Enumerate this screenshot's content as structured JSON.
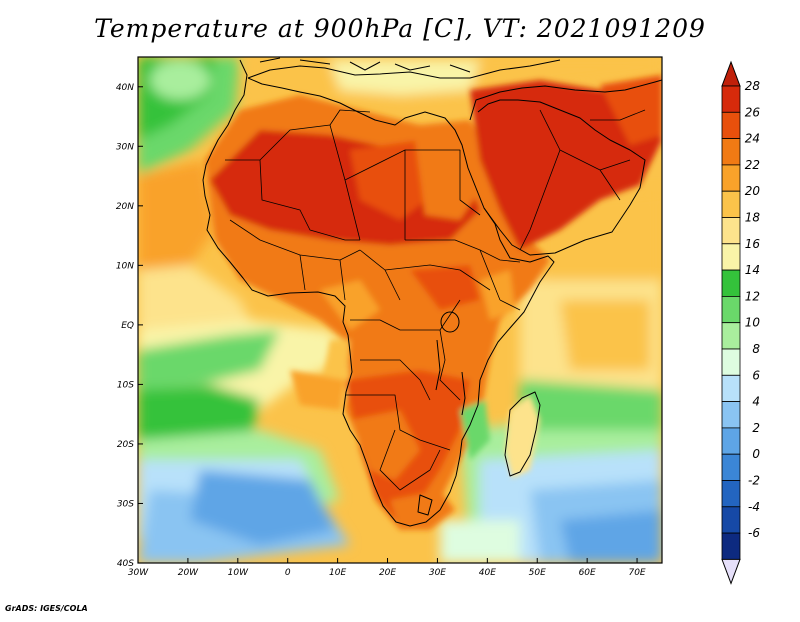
{
  "title": "Temperature at 900hPa [C], VT: 2021091209",
  "credit": "GrADS: IGES/COLA",
  "map": {
    "lon_range": [
      -30,
      75
    ],
    "lat_range": [
      -40,
      45
    ],
    "lon_labels": [
      "30W",
      "20W",
      "10W",
      "0",
      "10E",
      "20E",
      "30E",
      "40E",
      "50E",
      "60E",
      "70E"
    ],
    "lat_labels": [
      "40N",
      "30N",
      "20N",
      "10N",
      "EQ",
      "10S",
      "20S",
      "30S",
      "40S"
    ]
  },
  "colorbar": {
    "labels": [
      "28",
      "26",
      "24",
      "22",
      "20",
      "18",
      "16",
      "14",
      "12",
      "10",
      "8",
      "6",
      "4",
      "2",
      "0",
      "-2",
      "-4",
      "-6"
    ],
    "colors": [
      "#d62a0b",
      "#e8500c",
      "#f17a14",
      "#f9a22a",
      "#fbc34a",
      "#fde38c",
      "#f9f4a8",
      "#34c23b",
      "#6ad86a",
      "#a9ee9d",
      "#defde0",
      "#b8e1fa",
      "#8ac4f2",
      "#5ea5e6",
      "#3b86d6",
      "#2365c0",
      "#1649a6",
      "#0d2a80"
    ]
  }
}
